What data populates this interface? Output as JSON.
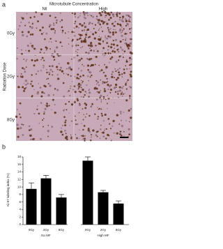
{
  "panel_a": {
    "label": "a",
    "title": "Microtubule Concentration",
    "columns": [
      "Nil",
      "High"
    ],
    "row_axis_label": "Radiation Dose",
    "rows": [
      "0Gy",
      "2Gy",
      "8Gy"
    ]
  },
  "chart_data": {
    "type": "bar",
    "panel_label": "b",
    "ylabel": "Ki-67 labeling index (%)",
    "categories": [
      "0Gy",
      "2Gy",
      "8Gy",
      "0Gy",
      "2Gy",
      "8Gy"
    ],
    "groups": [
      "No MF",
      "High MF"
    ],
    "values": [
      9.5,
      12.3,
      7.2,
      17,
      8.6,
      5.6
    ],
    "errors": [
      1.6,
      0.8,
      0.8,
      1.0,
      0.5,
      0.7
    ],
    "color": "#000000",
    "ylim": [
      0,
      18
    ],
    "yticks": [
      0,
      2,
      4,
      6,
      8,
      10,
      12,
      14,
      16,
      18
    ]
  }
}
